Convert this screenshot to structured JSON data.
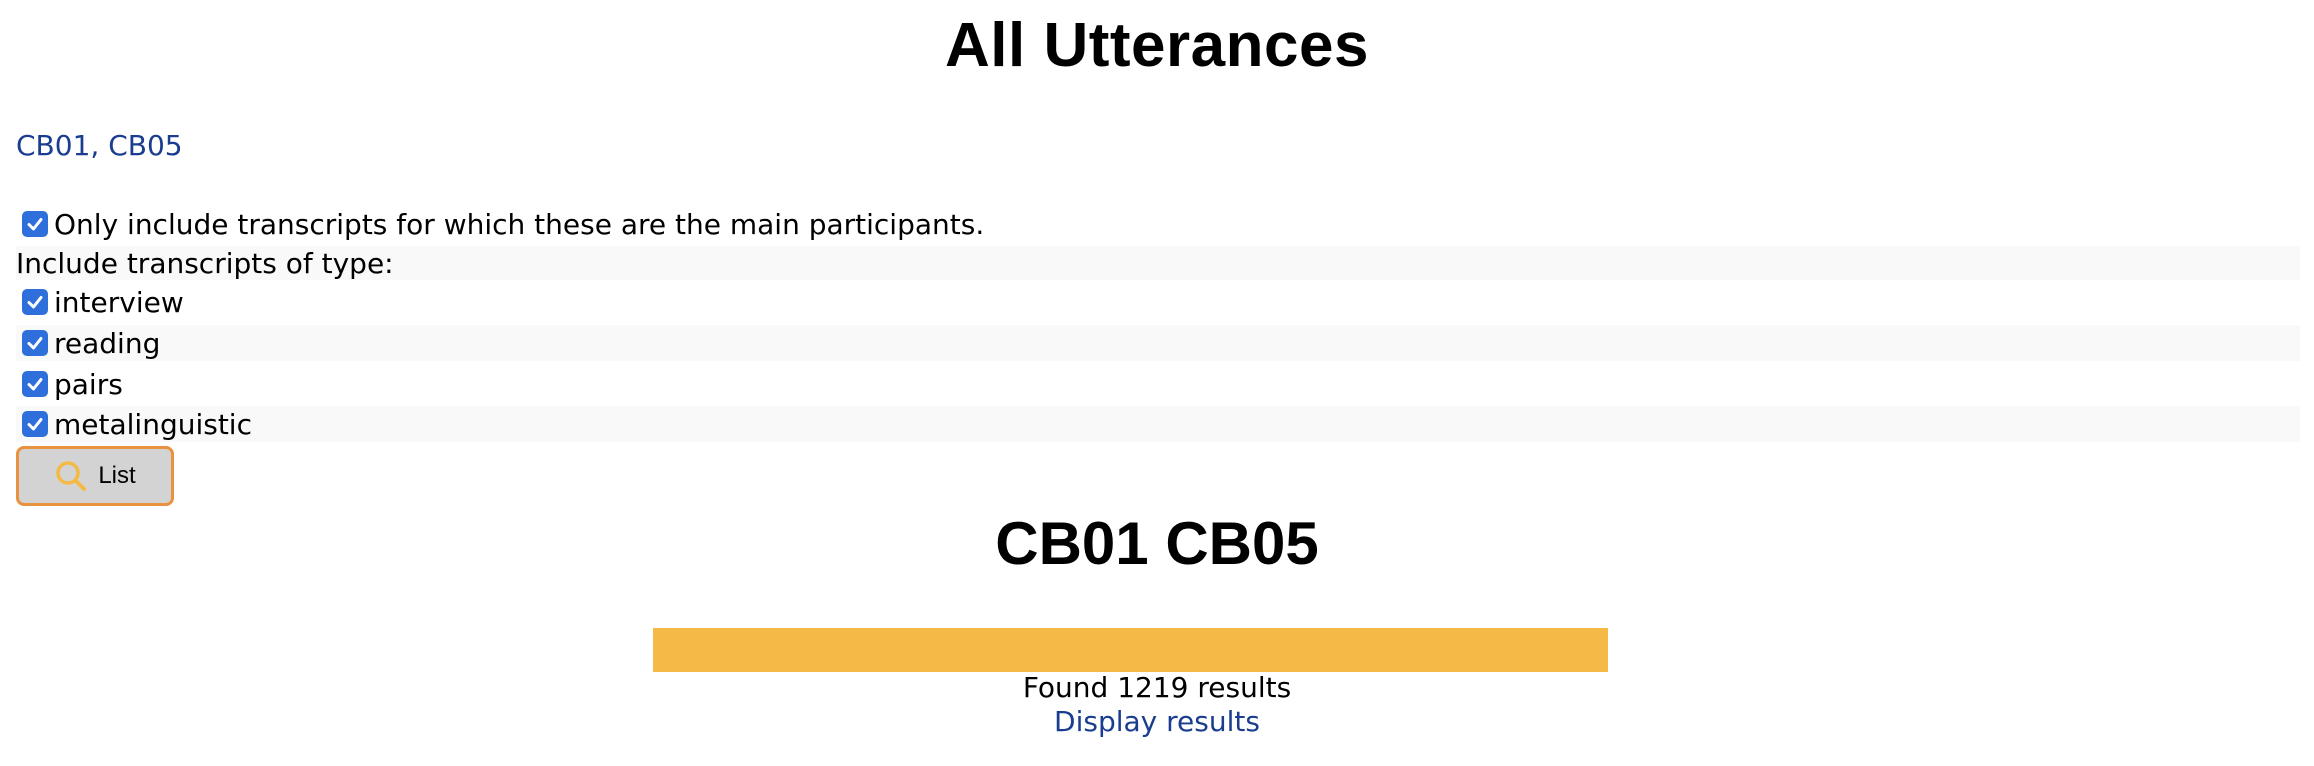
{
  "page": {
    "title": "All Utterances"
  },
  "participants_link": "CB01, CB05",
  "options": {
    "main_participants_label": "Only include transcripts for which these are the main participants.",
    "main_participants_checked": true,
    "types_label": "Include transcripts of type:",
    "types": [
      {
        "label": "interview",
        "checked": true
      },
      {
        "label": "reading",
        "checked": true
      },
      {
        "label": "pairs",
        "checked": true
      },
      {
        "label": "metalinguistic",
        "checked": true
      }
    ]
  },
  "list_button": {
    "label": "List",
    "icon": "search-icon"
  },
  "results": {
    "heading": "CB01 CB05",
    "progress_fraction": 1.0,
    "count_text": "Found 1219 results",
    "display_link": "Display results"
  },
  "colors": {
    "link": "#1a3d8f",
    "checkbox": "#2f6fdc",
    "progress": "#f5b945",
    "button_border": "#e8913f",
    "button_bg": "#d3d3d3"
  }
}
